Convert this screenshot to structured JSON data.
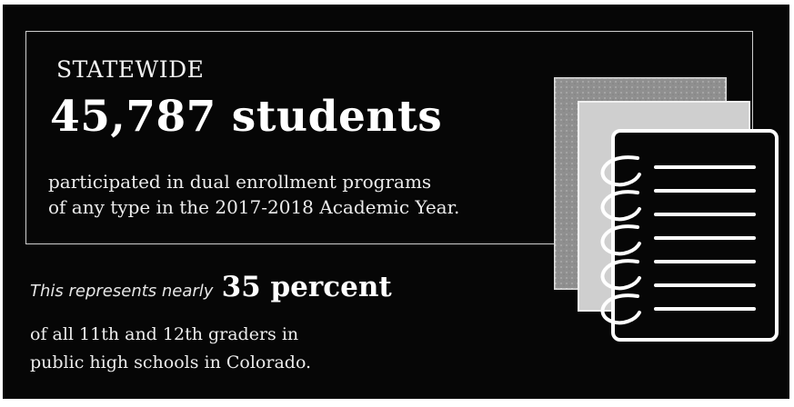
{
  "infographic": {
    "kicker": "STATEWIDE",
    "headline": "45,787 students",
    "description_line1": "participated in dual enrollment programs",
    "description_line2": "of any type in the 2017-2018 Academic Year.",
    "represents_lead": "This represents nearly",
    "percent_text": "35 percent",
    "population_line1": "of all 11th and 12th graders in",
    "population_line2": "public high schools in Colorado."
  },
  "icons": {
    "notebook": "notebook-stack-icon"
  },
  "colors": {
    "background": "#060606",
    "text": "#ffffff",
    "frame_border": "#cfcfcf"
  }
}
